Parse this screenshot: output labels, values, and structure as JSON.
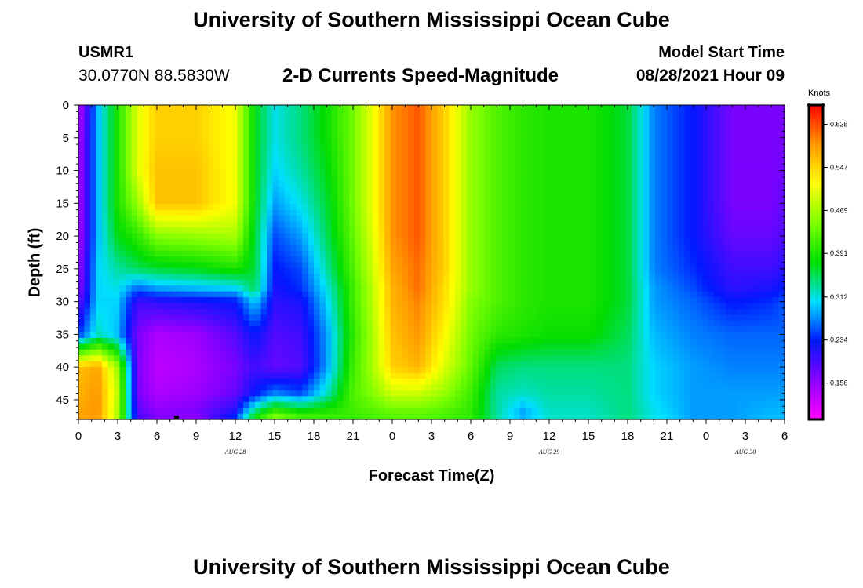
{
  "header": {
    "title": "University of Southern Mississippi Ocean Cube",
    "station_id": "USMR1",
    "coordinates": "30.0770N  88.5830W",
    "subtitle": "2-D Currents Speed-Magnitude",
    "model_start_label": "Model Start Time",
    "model_start_value": "08/28/2021 Hour 09"
  },
  "footer": {
    "title": "University of Southern Mississippi Ocean Cube"
  },
  "chart_data": {
    "type": "heatmap",
    "title": "2-D Currents Speed-Magnitude",
    "xlabel": "Forecast Time(Z)",
    "ylabel": "Depth (ft)",
    "x_ticks": [
      "0",
      "3",
      "6",
      "9",
      "12",
      "15",
      "18",
      "21",
      "0",
      "3",
      "6",
      "9",
      "12",
      "15",
      "18",
      "21",
      "0",
      "3",
      "6"
    ],
    "date_labels": [
      "AUG 28",
      "AUG 29",
      "AUG 30"
    ],
    "y_ticks": [
      "0",
      "5",
      "10",
      "15",
      "20",
      "25",
      "30",
      "35",
      "40",
      "45"
    ],
    "ylim": [
      48,
      0
    ],
    "colorbar": {
      "unit": "Knots",
      "ticks": [
        "0.625",
        "0.547",
        "0.469",
        "0.391",
        "0.312",
        "0.234",
        "0.156"
      ],
      "range": [
        0.09,
        0.66
      ],
      "colors": [
        "#ff00ff",
        "#8a00ff",
        "#0018ff",
        "#00e0ff",
        "#00dd00",
        "#7dff00",
        "#ffff00",
        "#ff9900",
        "#ff0000"
      ]
    },
    "x_hours": [
      0,
      1.5,
      3,
      4.5,
      6,
      9,
      12,
      13.5,
      15,
      17,
      19,
      21,
      22.5,
      24,
      26,
      28,
      30,
      32,
      34,
      36,
      39,
      42,
      44,
      47,
      50,
      53,
      54.5
    ],
    "depths": [
      0,
      5,
      10,
      15,
      20,
      25,
      28,
      30,
      35,
      40,
      44,
      47,
      48
    ],
    "values": [
      [
        0.13,
        0.29,
        0.39,
        0.5,
        0.55,
        0.55,
        0.51,
        0.37,
        0.31,
        0.34,
        0.38,
        0.44,
        0.51,
        0.59,
        0.62,
        0.55,
        0.46,
        0.42,
        0.4,
        0.39,
        0.39,
        0.36,
        0.27,
        0.23,
        0.17,
        0.17,
        0.17
      ],
      [
        0.14,
        0.29,
        0.39,
        0.5,
        0.55,
        0.55,
        0.51,
        0.37,
        0.31,
        0.34,
        0.38,
        0.44,
        0.51,
        0.59,
        0.62,
        0.55,
        0.46,
        0.42,
        0.4,
        0.39,
        0.39,
        0.36,
        0.27,
        0.23,
        0.17,
        0.17,
        0.17
      ],
      [
        0.14,
        0.29,
        0.39,
        0.5,
        0.56,
        0.56,
        0.51,
        0.37,
        0.3,
        0.33,
        0.37,
        0.44,
        0.51,
        0.59,
        0.62,
        0.55,
        0.46,
        0.42,
        0.4,
        0.39,
        0.39,
        0.36,
        0.27,
        0.23,
        0.17,
        0.17,
        0.18
      ],
      [
        0.14,
        0.29,
        0.39,
        0.46,
        0.56,
        0.56,
        0.51,
        0.37,
        0.28,
        0.31,
        0.36,
        0.44,
        0.51,
        0.59,
        0.62,
        0.55,
        0.46,
        0.42,
        0.4,
        0.39,
        0.39,
        0.36,
        0.27,
        0.23,
        0.17,
        0.17,
        0.19
      ],
      [
        0.14,
        0.29,
        0.37,
        0.4,
        0.45,
        0.46,
        0.47,
        0.36,
        0.25,
        0.28,
        0.35,
        0.43,
        0.5,
        0.59,
        0.62,
        0.55,
        0.46,
        0.42,
        0.4,
        0.39,
        0.39,
        0.36,
        0.27,
        0.23,
        0.18,
        0.18,
        0.2
      ],
      [
        0.15,
        0.3,
        0.33,
        0.35,
        0.36,
        0.37,
        0.39,
        0.36,
        0.23,
        0.25,
        0.33,
        0.42,
        0.49,
        0.58,
        0.61,
        0.55,
        0.46,
        0.42,
        0.4,
        0.39,
        0.39,
        0.36,
        0.27,
        0.24,
        0.2,
        0.2,
        0.22
      ],
      [
        0.16,
        0.3,
        0.31,
        0.26,
        0.28,
        0.29,
        0.3,
        0.35,
        0.22,
        0.24,
        0.31,
        0.41,
        0.48,
        0.57,
        0.61,
        0.54,
        0.46,
        0.42,
        0.4,
        0.39,
        0.39,
        0.36,
        0.28,
        0.25,
        0.21,
        0.22,
        0.24
      ],
      [
        0.18,
        0.3,
        0.3,
        0.2,
        0.21,
        0.22,
        0.23,
        0.3,
        0.21,
        0.22,
        0.3,
        0.41,
        0.48,
        0.57,
        0.6,
        0.54,
        0.45,
        0.42,
        0.4,
        0.39,
        0.39,
        0.36,
        0.28,
        0.26,
        0.23,
        0.24,
        0.26
      ],
      [
        0.24,
        0.32,
        0.29,
        0.17,
        0.14,
        0.15,
        0.19,
        0.23,
        0.19,
        0.2,
        0.28,
        0.4,
        0.47,
        0.56,
        0.59,
        0.52,
        0.44,
        0.4,
        0.39,
        0.38,
        0.38,
        0.35,
        0.29,
        0.27,
        0.26,
        0.26,
        0.26
      ],
      [
        0.56,
        0.58,
        0.46,
        0.17,
        0.13,
        0.14,
        0.17,
        0.2,
        0.18,
        0.19,
        0.28,
        0.41,
        0.47,
        0.55,
        0.57,
        0.5,
        0.43,
        0.35,
        0.34,
        0.34,
        0.34,
        0.34,
        0.3,
        0.28,
        0.27,
        0.27,
        0.27
      ],
      [
        0.57,
        0.59,
        0.48,
        0.17,
        0.14,
        0.15,
        0.18,
        0.23,
        0.27,
        0.25,
        0.32,
        0.42,
        0.45,
        0.49,
        0.49,
        0.46,
        0.41,
        0.33,
        0.32,
        0.33,
        0.33,
        0.34,
        0.3,
        0.28,
        0.28,
        0.28,
        0.28
      ],
      [
        0.58,
        0.59,
        0.47,
        0.19,
        0.16,
        0.17,
        0.22,
        0.35,
        0.42,
        0.39,
        0.4,
        0.41,
        0.42,
        0.43,
        0.43,
        0.42,
        0.4,
        0.33,
        0.28,
        0.32,
        0.32,
        0.34,
        0.31,
        0.28,
        0.28,
        0.29,
        0.29
      ],
      [
        0.58,
        0.59,
        0.47,
        0.2,
        0.17,
        0.15,
        0.25,
        0.39,
        0.46,
        0.42,
        0.41,
        0.4,
        0.41,
        0.42,
        0.42,
        0.41,
        0.4,
        0.33,
        0.29,
        0.32,
        0.32,
        0.34,
        0.31,
        0.28,
        0.28,
        0.29,
        0.29
      ]
    ]
  }
}
